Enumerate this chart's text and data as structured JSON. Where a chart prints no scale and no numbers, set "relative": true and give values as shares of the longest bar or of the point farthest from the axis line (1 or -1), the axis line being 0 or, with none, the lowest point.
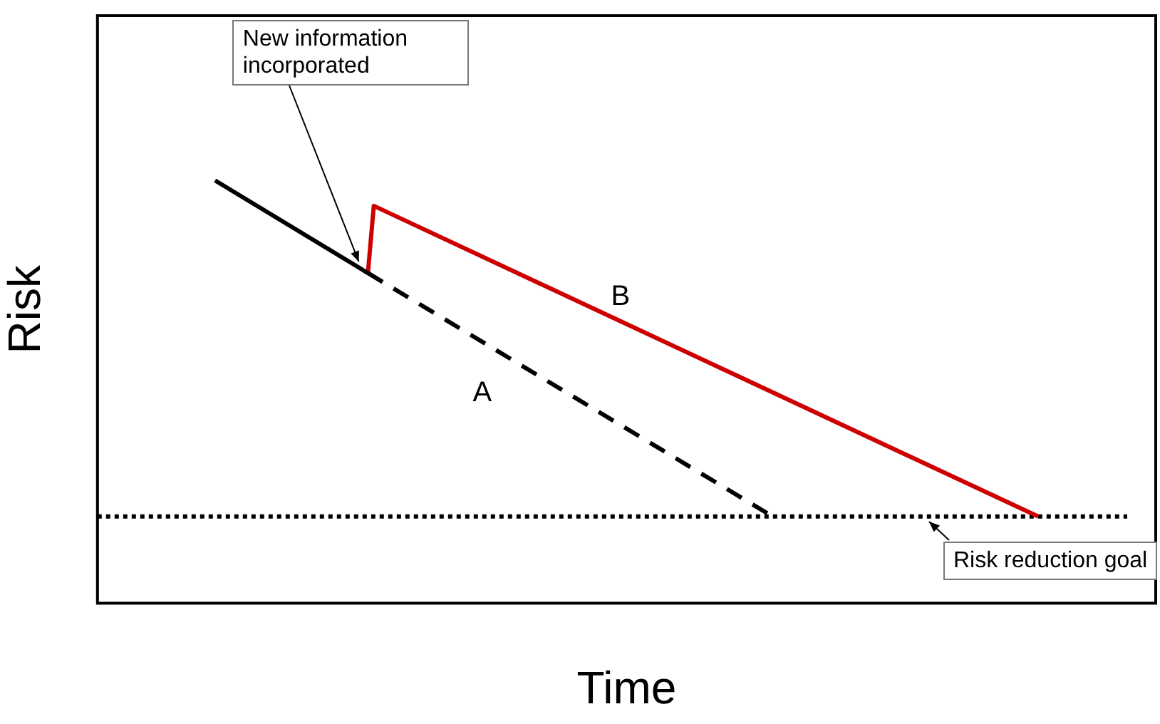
{
  "chart_data": {
    "type": "line",
    "relative": true,
    "xlabel": "Time",
    "ylabel": "Risk",
    "grid": false,
    "legend": false,
    "categories": [
      null,
      null,
      null,
      null,
      null,
      null,
      null,
      null,
      null,
      null,
      null,
      null,
      null,
      null,
      null,
      null,
      null,
      null,
      null,
      null,
      null,
      null,
      null,
      null,
      null,
      null,
      null,
      null,
      null,
      null,
      null,
      null,
      null,
      null,
      null,
      null,
      null,
      null,
      null,
      null,
      null,
      null,
      null,
      null,
      null,
      null,
      null,
      null,
      null,
      null,
      null,
      null,
      null,
      null,
      null,
      null,
      null,
      null,
      null,
      null,
      null,
      null,
      null,
      null,
      null,
      null,
      null,
      null,
      null,
      null,
      null,
      null,
      null,
      null,
      null,
      null,
      null,
      null,
      null,
      null,
      null,
      null,
      null,
      null,
      null,
      null,
      null,
      null,
      null,
      null,
      null,
      null,
      null,
      null,
      null,
      null,
      null,
      null,
      null,
      null,
      null,
      null,
      null,
      null,
      null,
      null,
      null,
      null,
      null,
      null,
      null,
      null,
      null,
      null,
      null,
      null,
      null,
      null,
      null,
      null,
      null,
      null,
      null,
      null,
      null,
      null,
      null,
      null,
      null,
      null,
      null,
      null,
      null,
      null,
      null,
      null,
      null,
      null,
      null,
      null,
      null,
      null,
      null,
      null,
      null,
      null,
      null,
      null,
      null,
      null,
      null,
      null,
      null,
      null,
      null,
      null,
      null,
      null,
      null,
      null,
      null,
      null,
      null,
      null,
      null,
      null,
      null,
      null,
      null,
      null,
      null,
      null,
      null,
      null,
      null,
      null,
      null,
      null,
      null,
      null,
      null
    ],
    "series": [
      {
        "color": "#000000",
        "line_style": "solid",
        "values": [
          null,
          null,
          null,
          null,
          null,
          null,
          null,
          null,
          null,
          null,
          null,
          null,
          null,
          null,
          null,
          null,
          null,
          null,
          null,
          null,
          1,
          null,
          null,
          null,
          null,
          null,
          null,
          null,
          null,
          null,
          null,
          null,
          null,
          null,
          null,
          null,
          null,
          null,
          null,
          null,
          null,
          null,
          null,
          null,
          null,
          null,
          0.781,
          null,
          null,
          null,
          null,
          null,
          null,
          null,
          null,
          null,
          null,
          null,
          null,
          null,
          null,
          null,
          null,
          null,
          null,
          null,
          null,
          null,
          null,
          null,
          null,
          null,
          null,
          null,
          null,
          null,
          null,
          null,
          null,
          null,
          null,
          null,
          null,
          null,
          null,
          null,
          null,
          null,
          null,
          null,
          null,
          null,
          null,
          null,
          null,
          null,
          null,
          null,
          null,
          null,
          null,
          null,
          null,
          null,
          null,
          null,
          null,
          null,
          null,
          null,
          null,
          null,
          null,
          null,
          null,
          null,
          null,
          null,
          null,
          null,
          null,
          null,
          null,
          null,
          null,
          null,
          null,
          null,
          null,
          null,
          null,
          null,
          null,
          null,
          null,
          null,
          null,
          null,
          null,
          null,
          null,
          null,
          null,
          null,
          null,
          null,
          null,
          null,
          null,
          null,
          null,
          null,
          null,
          null,
          null,
          null,
          null,
          null,
          null,
          null,
          null,
          null,
          null,
          null,
          null,
          null,
          null,
          null,
          null,
          null,
          null,
          null,
          null,
          null,
          null,
          null,
          null,
          null,
          null,
          null,
          null
        ]
      },
      {
        "name": "A",
        "color": "#000000",
        "line_style": "dashed",
        "values": [
          null,
          null,
          null,
          null,
          null,
          null,
          null,
          null,
          null,
          null,
          null,
          null,
          null,
          null,
          null,
          null,
          null,
          null,
          null,
          null,
          null,
          null,
          null,
          null,
          null,
          null,
          null,
          null,
          null,
          null,
          null,
          null,
          null,
          null,
          null,
          null,
          null,
          null,
          null,
          null,
          null,
          null,
          null,
          null,
          null,
          null,
          0.781,
          null,
          null,
          null,
          null,
          null,
          null,
          null,
          null,
          null,
          null,
          null,
          null,
          null,
          null,
          null,
          null,
          null,
          null,
          null,
          null,
          null,
          null,
          null,
          null,
          null,
          null,
          null,
          null,
          null,
          null,
          null,
          null,
          null,
          null,
          null,
          null,
          null,
          null,
          null,
          null,
          null,
          null,
          null,
          null,
          null,
          null,
          null,
          null,
          null,
          null,
          null,
          null,
          null,
          null,
          null,
          null,
          null,
          null,
          null,
          null,
          null,
          null,
          null,
          null,
          null,
          null,
          null,
          0.212,
          null,
          null,
          null,
          null,
          null,
          null,
          null,
          null,
          null,
          null,
          null,
          null,
          null,
          null,
          null,
          null,
          null,
          null,
          null,
          null,
          null,
          null,
          null,
          null,
          null,
          null,
          null,
          null,
          null,
          null,
          null,
          null,
          null,
          null,
          null,
          null,
          null,
          null,
          null,
          null,
          null,
          null,
          null,
          null,
          null,
          null,
          null,
          null,
          null,
          null,
          null,
          null,
          null,
          null,
          null,
          null,
          null,
          null,
          null,
          null,
          null,
          null,
          null,
          null,
          null,
          null
        ]
      },
      {
        "name": "B",
        "color": "#cc0000",
        "line_style": "solid",
        "values": [
          null,
          null,
          null,
          null,
          null,
          null,
          null,
          null,
          null,
          null,
          null,
          null,
          null,
          null,
          null,
          null,
          null,
          null,
          null,
          null,
          null,
          null,
          null,
          null,
          null,
          null,
          null,
          null,
          null,
          null,
          null,
          null,
          null,
          null,
          null,
          null,
          null,
          null,
          null,
          null,
          null,
          null,
          null,
          null,
          null,
          null,
          0.781,
          0.94,
          null,
          null,
          null,
          null,
          null,
          null,
          null,
          null,
          null,
          null,
          null,
          null,
          null,
          null,
          null,
          null,
          null,
          null,
          null,
          null,
          null,
          null,
          null,
          null,
          null,
          null,
          null,
          null,
          null,
          null,
          null,
          null,
          null,
          null,
          null,
          null,
          null,
          null,
          null,
          null,
          null,
          null,
          null,
          null,
          null,
          null,
          null,
          null,
          null,
          null,
          null,
          null,
          null,
          null,
          null,
          null,
          null,
          null,
          null,
          null,
          null,
          null,
          null,
          null,
          null,
          null,
          null,
          null,
          null,
          null,
          null,
          null,
          null,
          null,
          null,
          null,
          null,
          null,
          null,
          null,
          null,
          null,
          null,
          null,
          null,
          null,
          null,
          null,
          null,
          null,
          null,
          null,
          null,
          null,
          null,
          null,
          null,
          null,
          null,
          null,
          null,
          null,
          null,
          null,
          null,
          null,
          null,
          null,
          null,
          null,
          null,
          null,
          0.205,
          null,
          null,
          null,
          null,
          null,
          null,
          null,
          null,
          null,
          null,
          null,
          null,
          null,
          null,
          null,
          null,
          null,
          null,
          null,
          null
        ]
      }
    ],
    "ref_lines": [
      {
        "axis": "y",
        "value": 0.205,
        "color": "#000000",
        "line_style": "dotted"
      }
    ],
    "annotations": [
      "New information incorporated",
      "Risk reduction goal"
    ]
  }
}
